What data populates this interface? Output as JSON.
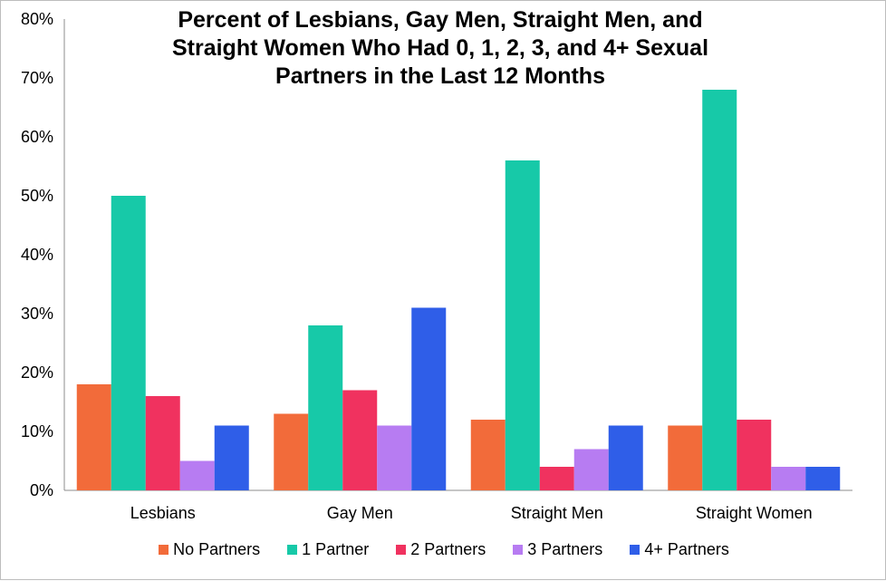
{
  "chart_data": {
    "type": "bar",
    "title": "Percent of Lesbians, Gay Men, Straight Men, and Straight Women Who Had 0, 1, 2, 3, and 4+ Sexual Partners in the Last 12 Months",
    "title_lines": [
      "Percent of Lesbians, Gay Men, Straight Men, and",
      "Straight Women Who Had 0, 1, 2, 3, and 4+ Sexual",
      "Partners in the Last 12 Months"
    ],
    "xlabel": "",
    "ylabel": "",
    "categories": [
      "Lesbians",
      "Gay Men",
      "Straight Men",
      "Straight Women"
    ],
    "ylim": [
      0,
      80
    ],
    "yticks": [
      "0%",
      "10%",
      "20%",
      "30%",
      "40%",
      "50%",
      "60%",
      "70%",
      "80%"
    ],
    "grid": false,
    "legend_position": "bottom",
    "series": [
      {
        "name": "No Partners",
        "color": "#f26b3a",
        "values": [
          18,
          13,
          12,
          11
        ]
      },
      {
        "name": "1 Partner",
        "color": "#17c9a8",
        "values": [
          50,
          28,
          56,
          68
        ]
      },
      {
        "name": "2 Partners",
        "color": "#f0325f",
        "values": [
          16,
          17,
          4,
          12
        ]
      },
      {
        "name": "3 Partners",
        "color": "#b77cf2",
        "values": [
          5,
          11,
          7,
          4
        ]
      },
      {
        "name": "4+ Partners",
        "color": "#2f5ee8",
        "values": [
          11,
          31,
          11,
          4
        ]
      }
    ]
  }
}
